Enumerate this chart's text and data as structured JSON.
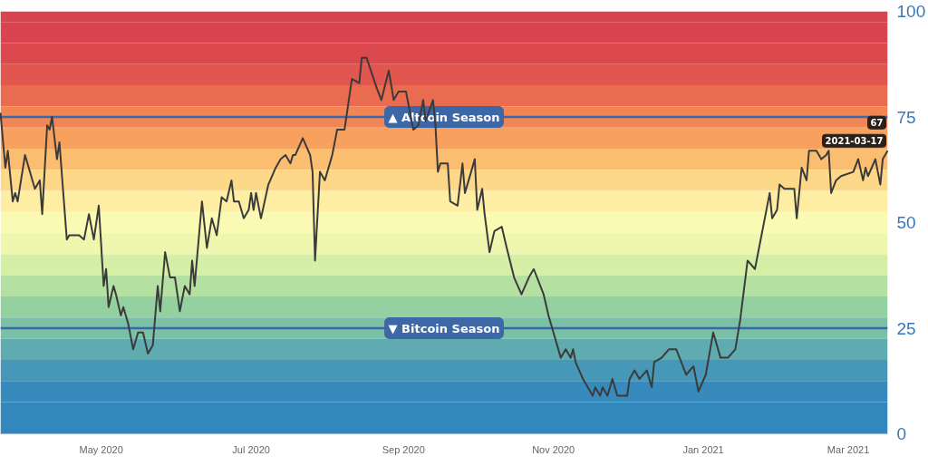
{
  "chart_data": {
    "type": "line",
    "x": [
      "2020-03-21",
      "2020-03-23",
      "2020-03-24",
      "2020-03-26",
      "2020-03-27",
      "2020-03-28",
      "2020-03-31",
      "2020-04-02",
      "2020-04-04",
      "2020-04-06",
      "2020-04-07",
      "2020-04-09",
      "2020-04-10",
      "2020-04-11",
      "2020-04-13",
      "2020-04-14",
      "2020-04-17",
      "2020-04-18",
      "2020-04-22",
      "2020-04-24",
      "2020-04-26",
      "2020-04-28",
      "2020-04-30",
      "2020-05-02",
      "2020-05-03",
      "2020-05-04",
      "2020-05-06",
      "2020-05-07",
      "2020-05-09",
      "2020-05-10",
      "2020-05-12",
      "2020-05-14",
      "2020-05-16",
      "2020-05-18",
      "2020-05-20",
      "2020-05-22",
      "2020-05-24",
      "2020-05-25",
      "2020-05-27",
      "2020-05-29",
      "2020-05-31",
      "2020-06-02",
      "2020-06-04",
      "2020-06-06",
      "2020-06-07",
      "2020-06-08",
      "2020-06-11",
      "2020-06-13",
      "2020-06-15",
      "2020-06-17",
      "2020-06-19",
      "2020-06-21",
      "2020-06-23",
      "2020-06-24",
      "2020-06-26",
      "2020-06-28",
      "2020-06-30",
      "2020-07-01",
      "2020-07-02",
      "2020-07-03",
      "2020-07-05",
      "2020-07-08",
      "2020-07-11",
      "2020-07-13",
      "2020-07-15",
      "2020-07-17",
      "2020-07-18",
      "2020-07-19",
      "2020-07-22",
      "2020-07-25",
      "2020-07-26",
      "2020-07-27",
      "2020-07-29",
      "2020-07-31",
      "2020-08-03",
      "2020-08-05",
      "2020-08-08",
      "2020-08-11",
      "2020-08-14",
      "2020-08-15",
      "2020-08-17",
      "2020-08-21",
      "2020-08-23",
      "2020-08-26",
      "2020-08-28",
      "2020-08-30",
      "2020-09-02",
      "2020-09-05",
      "2020-09-07",
      "2020-09-09",
      "2020-09-10",
      "2020-09-13",
      "2020-09-14",
      "2020-09-15",
      "2020-09-16",
      "2020-09-19",
      "2020-09-20",
      "2020-09-23",
      "2020-09-25",
      "2020-09-26",
      "2020-09-30",
      "2020-10-01",
      "2020-10-03",
      "2020-10-04",
      "2020-10-06",
      "2020-10-08",
      "2020-10-11",
      "2020-10-13",
      "2020-10-16",
      "2020-10-19",
      "2020-10-22",
      "2020-10-24",
      "2020-10-28",
      "2020-10-30",
      "2020-11-01",
      "2020-11-04",
      "2020-11-06",
      "2020-11-08",
      "2020-11-09",
      "2020-11-10",
      "2020-11-13",
      "2020-11-17",
      "2020-11-18",
      "2020-11-20",
      "2020-11-21",
      "2020-11-23",
      "2020-11-25",
      "2020-11-27",
      "2020-12-01",
      "2020-12-02",
      "2020-12-04",
      "2020-12-06",
      "2020-12-09",
      "2020-12-11",
      "2020-12-12",
      "2020-12-15",
      "2020-12-18",
      "2020-12-21",
      "2020-12-25",
      "2020-12-28",
      "2020-12-30",
      "2021-01-02",
      "2021-01-05",
      "2021-01-08",
      "2021-01-11",
      "2021-01-14",
      "2021-01-16",
      "2021-01-19",
      "2021-01-22",
      "2021-01-24",
      "2021-01-26",
      "2021-01-28",
      "2021-01-29",
      "2021-01-31",
      "2021-02-01",
      "2021-02-03",
      "2021-02-05",
      "2021-02-07",
      "2021-02-08",
      "2021-02-10",
      "2021-02-12",
      "2021-02-13",
      "2021-02-16",
      "2021-02-18",
      "2021-02-20",
      "2021-02-21",
      "2021-02-22",
      "2021-02-24",
      "2021-02-26",
      "2021-03-03",
      "2021-03-05",
      "2021-03-07",
      "2021-03-08",
      "2021-03-09",
      "2021-03-12",
      "2021-03-14",
      "2021-03-15",
      "2021-03-17"
    ],
    "series": [
      {
        "color": "#3b3b3b",
        "values": [
          76,
          63,
          67,
          55,
          57,
          55,
          66,
          62,
          58,
          60,
          52,
          73,
          72,
          75,
          65,
          69,
          46,
          47,
          47,
          46,
          52,
          46,
          54,
          35,
          39,
          30,
          35,
          33,
          28,
          30,
          26,
          20,
          24,
          24,
          19,
          21,
          35,
          29,
          43,
          37,
          37,
          29,
          35,
          33,
          41,
          35,
          55,
          44,
          51,
          47,
          56,
          55,
          60,
          55,
          55,
          51,
          53,
          57,
          53,
          57,
          51,
          59,
          63,
          65,
          66,
          64,
          66,
          66,
          70,
          66,
          62,
          41,
          62,
          60,
          66,
          72,
          72,
          84,
          83,
          89,
          89,
          82,
          79,
          86,
          79,
          81,
          81,
          72,
          73,
          79,
          74,
          79,
          73,
          62,
          64,
          64,
          55,
          54,
          64,
          57,
          65,
          53,
          58,
          52,
          43,
          48,
          49,
          44,
          37,
          33,
          37,
          39,
          33,
          28,
          24,
          18,
          20,
          18,
          20,
          17,
          13,
          9,
          11,
          9,
          11,
          9,
          13,
          9,
          9,
          13,
          15,
          13,
          15,
          11,
          17,
          18,
          20,
          20,
          14,
          16,
          10,
          14,
          24,
          18,
          18,
          20,
          27,
          41,
          39,
          45,
          51,
          57,
          51,
          53,
          59,
          58,
          58,
          58,
          51,
          63,
          60,
          67,
          67,
          65,
          66,
          67,
          57,
          60,
          61,
          62,
          65,
          60,
          63,
          61,
          65,
          59,
          65,
          67
        ]
      }
    ],
    "xlim": [
      "2020-03-21",
      "2021-03-17"
    ],
    "xticks": [
      {
        "value": "2020-05-01",
        "label": "May 2020"
      },
      {
        "value": "2020-07-01",
        "label": "Jul 2020"
      },
      {
        "value": "2020-09-01",
        "label": "Sep 2020"
      },
      {
        "value": "2020-11-01",
        "label": "Nov 2020"
      },
      {
        "value": "2021-01-01",
        "label": "Jan 2021"
      },
      {
        "value": "2021-03-01",
        "label": "Mar 2021"
      }
    ],
    "ylim": [
      0,
      100
    ],
    "yticks": [
      0,
      25,
      50,
      75,
      100
    ],
    "marker": "none",
    "line_style": "solid",
    "ref_lines": [
      {
        "axis": "y",
        "value": 75,
        "label": "▲ Altcoin Season",
        "color": "#3d68a8"
      },
      {
        "axis": "y",
        "value": 25,
        "label": "▼ Bitcoin Season",
        "color": "#3d68a8"
      }
    ],
    "bands": [
      {
        "axis": "y",
        "from": 97.5,
        "to": 100,
        "color": "#d9444e"
      },
      {
        "axis": "y",
        "from": 92.5,
        "to": 97.5,
        "color": "#d9454e"
      },
      {
        "axis": "y",
        "from": 87.5,
        "to": 92.5,
        "color": "#db484e"
      },
      {
        "axis": "y",
        "from": 82.5,
        "to": 87.5,
        "color": "#e1564e"
      },
      {
        "axis": "y",
        "from": 77.5,
        "to": 82.5,
        "color": "#e96b50"
      },
      {
        "axis": "y",
        "from": 72.5,
        "to": 77.5,
        "color": "#f18554"
      },
      {
        "axis": "y",
        "from": 67.5,
        "to": 72.5,
        "color": "#f8a15e"
      },
      {
        "axis": "y",
        "from": 62.5,
        "to": 67.5,
        "color": "#fbbd70"
      },
      {
        "axis": "y",
        "from": 57.5,
        "to": 62.5,
        "color": "#fdd889"
      },
      {
        "axis": "y",
        "from": 52.5,
        "to": 57.5,
        "color": "#fdeea4"
      },
      {
        "axis": "y",
        "from": 47.5,
        "to": 52.5,
        "color": "#fbfab4"
      },
      {
        "axis": "y",
        "from": 42.5,
        "to": 47.5,
        "color": "#eef7ae"
      },
      {
        "axis": "y",
        "from": 37.5,
        "to": 42.5,
        "color": "#d5efa6"
      },
      {
        "axis": "y",
        "from": 32.5,
        "to": 37.5,
        "color": "#b4e1a2"
      },
      {
        "axis": "y",
        "from": 27.5,
        "to": 32.5,
        "color": "#94d1a1"
      },
      {
        "axis": "y",
        "from": 22.5,
        "to": 27.5,
        "color": "#7ac0a6"
      },
      {
        "axis": "y",
        "from": 17.5,
        "to": 22.5,
        "color": "#5fabaf"
      },
      {
        "axis": "y",
        "from": 12.5,
        "to": 17.5,
        "color": "#4697b8"
      },
      {
        "axis": "y",
        "from": 7.5,
        "to": 12.5,
        "color": "#368bbc"
      },
      {
        "axis": "y",
        "from": 0,
        "to": 7.5,
        "color": "#3288bd"
      }
    ],
    "annotations": [
      {
        "text": "2021-03-17",
        "x": "2021-03-17",
        "y": 67
      },
      {
        "text": "67",
        "x": "2021-03-17",
        "y": 67
      }
    ]
  }
}
